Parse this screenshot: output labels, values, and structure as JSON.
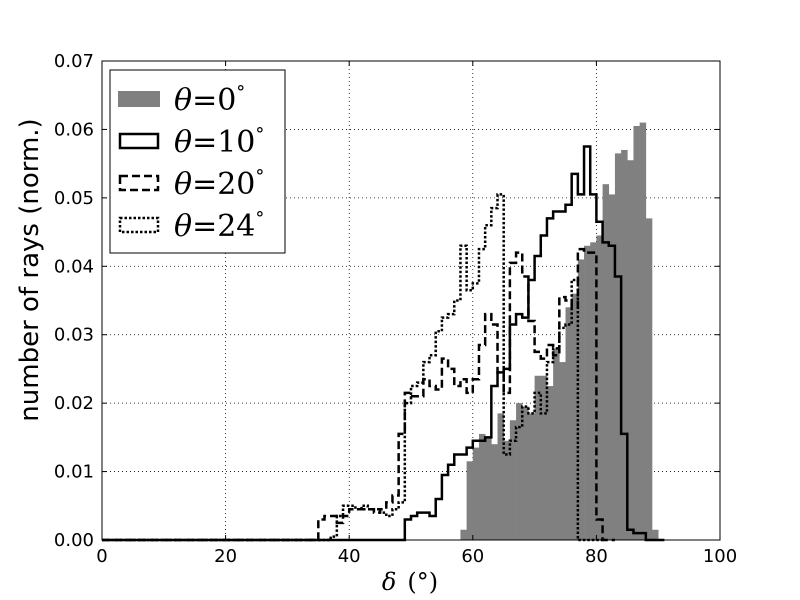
{
  "chart_data": {
    "type": "histogram",
    "xlabel_symbol": "δ",
    "xlabel_unit": "(°)",
    "ylabel": "number of rays (norm.)",
    "xlim": [
      0,
      100
    ],
    "ylim": [
      0,
      0.07
    ],
    "xticks": [
      0,
      20,
      40,
      60,
      80,
      100
    ],
    "yticks": [
      0.0,
      0.01,
      0.02,
      0.03,
      0.04,
      0.05,
      0.06,
      0.07
    ],
    "xtick_labels": [
      "0",
      "20",
      "40",
      "60",
      "80",
      "100"
    ],
    "ytick_labels": [
      "0.00",
      "0.01",
      "0.02",
      "0.03",
      "0.04",
      "0.05",
      "0.06",
      "0.07"
    ],
    "grid": true,
    "legend_position": "top-left",
    "legend": [
      {
        "symbol": "θ",
        "eq": "=0",
        "unit": "°",
        "style": "filled"
      },
      {
        "symbol": "θ",
        "eq": "=10",
        "unit": "°",
        "style": "solid"
      },
      {
        "symbol": "θ",
        "eq": "=20",
        "unit": "°",
        "style": "dashed"
      },
      {
        "symbol": "θ",
        "eq": "=24",
        "unit": "°",
        "style": "dotted"
      }
    ],
    "series": [
      {
        "style": "filled",
        "color": "#808080",
        "x": [
          57,
          58,
          59,
          60,
          61,
          62,
          63,
          64,
          65,
          66,
          67,
          68,
          69,
          70,
          71,
          72,
          73,
          74,
          75,
          76,
          77,
          78,
          79,
          80,
          81,
          82,
          83,
          84,
          85,
          86,
          87,
          88,
          89,
          90
        ],
        "y": [
          0.0,
          0.0015,
          0.0115,
          0.0135,
          0.0155,
          0.015,
          0.014,
          0.0185,
          0.0145,
          0.0175,
          0.02,
          0.0195,
          0.0185,
          0.024,
          0.024,
          0.0225,
          0.028,
          0.026,
          0.034,
          0.036,
          0.041,
          0.043,
          0.0435,
          0.0445,
          0.052,
          0.0505,
          0.0565,
          0.057,
          0.0555,
          0.0605,
          0.061,
          0.047,
          0.0015,
          0.0
        ]
      },
      {
        "style": "solid",
        "color": "#000000",
        "x": [
          0,
          48,
          49,
          50,
          51,
          52,
          53,
          54,
          55,
          56,
          57,
          58,
          59,
          60,
          61,
          62,
          63,
          64,
          65,
          66,
          67,
          68,
          69,
          70,
          71,
          72,
          73,
          74,
          75,
          76,
          77,
          78,
          79,
          80,
          81,
          82,
          83,
          84,
          85,
          86,
          87,
          88,
          89,
          90
        ],
        "y": [
          0.0,
          0.0,
          0.003,
          0.0035,
          0.004,
          0.004,
          0.0035,
          0.006,
          0.0095,
          0.011,
          0.0125,
          0.0125,
          0.0135,
          0.0145,
          0.0145,
          0.015,
          0.0225,
          0.0245,
          0.025,
          0.0315,
          0.033,
          0.0325,
          0.038,
          0.0415,
          0.0445,
          0.047,
          0.048,
          0.048,
          0.049,
          0.0535,
          0.0505,
          0.0575,
          0.0505,
          0.0465,
          0.0435,
          0.043,
          0.0385,
          0.0155,
          0.0015,
          0.001,
          0.001,
          0.0,
          0.0,
          0.0
        ]
      },
      {
        "style": "dashed",
        "color": "#000000",
        "x": [
          0,
          34,
          35,
          36,
          37,
          38,
          39,
          40,
          41,
          42,
          43,
          44,
          45,
          46,
          47,
          48,
          49,
          50,
          51,
          52,
          53,
          54,
          55,
          56,
          57,
          58,
          59,
          60,
          61,
          62,
          63,
          64,
          65,
          66,
          67,
          68,
          69,
          70,
          71,
          72,
          73,
          74,
          75,
          76,
          77,
          78,
          79,
          80,
          81,
          82
        ],
        "y": [
          0.0,
          0.0,
          0.003,
          0.0035,
          0.0035,
          0.0025,
          0.0035,
          0.0045,
          0.0045,
          0.0045,
          0.0045,
          0.004,
          0.0045,
          0.0055,
          0.0065,
          0.0155,
          0.0215,
          0.021,
          0.021,
          0.0235,
          0.0225,
          0.022,
          0.0265,
          0.025,
          0.0225,
          0.0235,
          0.0215,
          0.0235,
          0.0285,
          0.033,
          0.0315,
          0.0245,
          0.0215,
          0.0405,
          0.042,
          0.0385,
          0.032,
          0.0275,
          0.0265,
          0.0285,
          0.027,
          0.0355,
          0.035,
          0.034,
          0.0425,
          0.042,
          0.042,
          0.003,
          0.0,
          0.0
        ]
      },
      {
        "style": "dotted",
        "color": "#000000",
        "x": [
          0,
          35,
          36,
          37,
          38,
          39,
          40,
          41,
          42,
          43,
          44,
          45,
          46,
          47,
          48,
          49,
          50,
          51,
          52,
          53,
          54,
          55,
          56,
          57,
          58,
          59,
          60,
          61,
          62,
          63,
          64,
          65,
          66,
          67,
          68,
          69,
          70,
          71,
          72,
          73,
          74,
          75,
          76,
          77,
          78,
          79,
          80
        ],
        "y": [
          0.0,
          0.0,
          0.0,
          0.0005,
          0.0035,
          0.005,
          0.005,
          0.0045,
          0.005,
          0.0045,
          0.0045,
          0.004,
          0.0035,
          0.0045,
          0.0055,
          0.02,
          0.0225,
          0.023,
          0.026,
          0.027,
          0.0305,
          0.0325,
          0.033,
          0.035,
          0.043,
          0.0365,
          0.0375,
          0.0425,
          0.046,
          0.0485,
          0.0505,
          0.0125,
          0.0145,
          0.0165,
          0.0195,
          0.0185,
          0.0215,
          0.0185,
          0.026,
          0.028,
          0.031,
          0.0315,
          0.038,
          0.0,
          0.0,
          0.0,
          0.0
        ]
      }
    ]
  }
}
